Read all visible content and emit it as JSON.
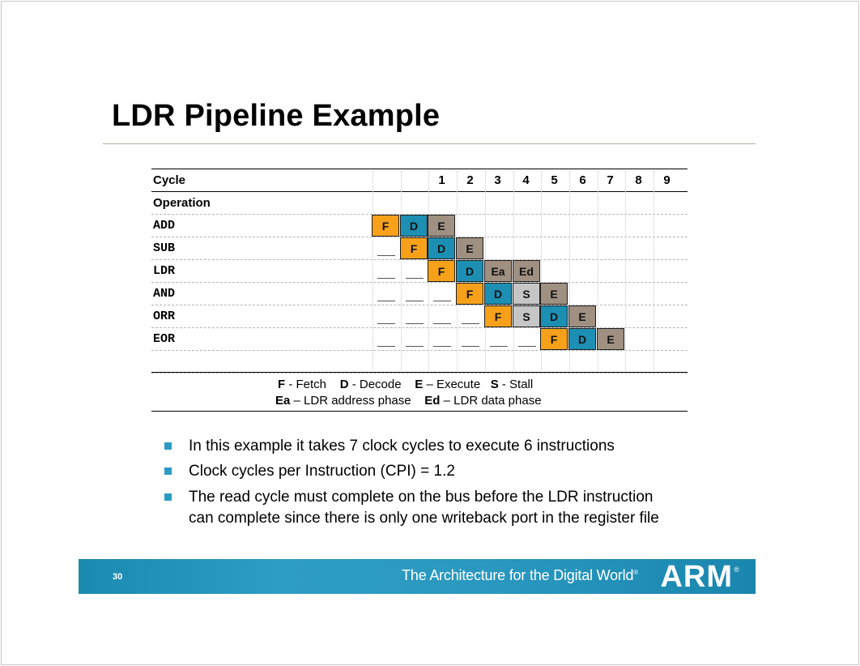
{
  "slide": {
    "title": "LDR Pipeline Example",
    "page_number": "30"
  },
  "table": {
    "cycle_header": "Cycle",
    "operation_header": "Operation",
    "cycles": [
      "1",
      "2",
      "3",
      "4",
      "5",
      "6",
      "7",
      "8",
      "9"
    ],
    "rows": [
      {
        "op": "ADD",
        "stages": [
          {
            "label": "F",
            "col": 0
          },
          {
            "label": "D",
            "col": 1
          },
          {
            "label": "E",
            "col": 2
          }
        ],
        "blanks": []
      },
      {
        "op": "SUB",
        "stages": [
          {
            "label": "F",
            "col": 1
          },
          {
            "label": "D",
            "col": 2
          },
          {
            "label": "E",
            "col": 3
          }
        ],
        "blanks": [
          0
        ]
      },
      {
        "op": "LDR",
        "stages": [
          {
            "label": "F",
            "col": 2
          },
          {
            "label": "D",
            "col": 3
          },
          {
            "label": "Ea",
            "col": 4
          },
          {
            "label": "Ed",
            "col": 5
          }
        ],
        "blanks": [
          0,
          1
        ]
      },
      {
        "op": "AND",
        "stages": [
          {
            "label": "F",
            "col": 3
          },
          {
            "label": "D",
            "col": 4
          },
          {
            "label": "S",
            "col": 5
          },
          {
            "label": "E",
            "col": 6
          }
        ],
        "blanks": [
          0,
          1,
          2
        ]
      },
      {
        "op": "ORR",
        "stages": [
          {
            "label": "F",
            "col": 4
          },
          {
            "label": "S",
            "col": 5
          },
          {
            "label": "D",
            "col": 6
          },
          {
            "label": "E",
            "col": 7
          }
        ],
        "blanks": [
          0,
          1,
          2,
          3
        ]
      },
      {
        "op": "EOR",
        "stages": [
          {
            "label": "F",
            "col": 6
          },
          {
            "label": "D",
            "col": 7
          },
          {
            "label": "E",
            "col": 8
          }
        ],
        "blanks": [
          0,
          1,
          2,
          3,
          4,
          5
        ]
      }
    ],
    "stage_colors": {
      "F": "#f7a11a",
      "D": "#1c8fb3",
      "E": "#9f9081",
      "Ea": "#9f9081",
      "Ed": "#9f9081",
      "S": "#c6c6c6"
    }
  },
  "legend": {
    "line1": [
      {
        "key": "F",
        "desc": " - Fetch"
      },
      {
        "key": "D",
        "desc": " - Decode"
      },
      {
        "key": "E",
        "desc": " – Execute"
      },
      {
        "key": "S",
        "desc": " - Stall"
      }
    ],
    "line2": [
      {
        "key": "Ea",
        "desc": " – LDR address phase"
      },
      {
        "key": "Ed",
        "desc": " – LDR data phase"
      }
    ]
  },
  "bullets": [
    "In this example it takes 7 clock cycles to execute 6 instructions",
    "Clock cycles per Instruction (CPI) = 1.2",
    "The read cycle must complete on the bus before the LDR instruction can complete since there is only one writeback port in the register file"
  ],
  "footer": {
    "tagline": "The Architecture for the Digital World",
    "tagline_mark": "®",
    "logo": "ARM",
    "logo_mark": "®",
    "accent": "#2a98bf"
  }
}
